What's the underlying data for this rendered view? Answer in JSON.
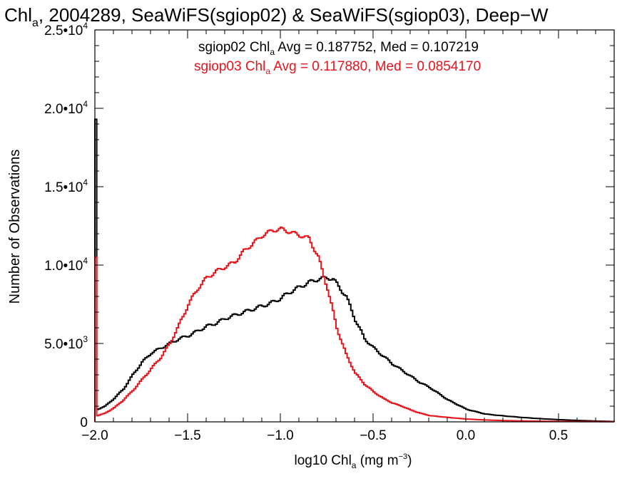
{
  "chart_data": {
    "type": "line",
    "title": {
      "main": "Chl",
      "sub": "a",
      "rest": ", 2004289, SeaWiFS(sgiop02) & SeaWiFS(sgiop03), Deep−W"
    },
    "xlabel": {
      "pre": "log10 Chl",
      "sub": "a",
      "mid": " (mg m",
      "sup": "−3",
      "post": ")"
    },
    "ylabel": "Number of Observations",
    "xlim": [
      -2.0,
      0.8
    ],
    "ylim": [
      0,
      25000
    ],
    "xticks": [
      {
        "value": -2.0,
        "label": "−2.0"
      },
      {
        "value": -1.5,
        "label": "−1.5"
      },
      {
        "value": -1.0,
        "label": "−1.0"
      },
      {
        "value": -0.5,
        "label": "−0.5"
      },
      {
        "value": 0.0,
        "label": "0.0"
      },
      {
        "value": 0.5,
        "label": "0.5"
      }
    ],
    "yticks": [
      {
        "value": 0,
        "mant": "0",
        "exp": ""
      },
      {
        "value": 5000,
        "mant": "5.0•10",
        "exp": "3"
      },
      {
        "value": 10000,
        "mant": "1.0•10",
        "exp": "4"
      },
      {
        "value": 15000,
        "mant": "1.5•10",
        "exp": "4"
      },
      {
        "value": 20000,
        "mant": "2.0•10",
        "exp": "4"
      },
      {
        "value": 25000,
        "mant": "2.5•10",
        "exp": "4"
      }
    ],
    "legend": [
      {
        "pre": "sgiop02 Chl",
        "sub": "a",
        "post": " Avg = 0.187752, Med = 0.107219",
        "color": "#000000"
      },
      {
        "pre": "sgiop03 Chl",
        "sub": "a",
        "post": " Avg = 0.117880, Med = 0.0854170",
        "color": "#e8141c"
      }
    ],
    "series": [
      {
        "color": "#000000",
        "x": [
          -2.0,
          -1.99,
          -1.95,
          -1.9,
          -1.85,
          -1.8,
          -1.75,
          -1.7,
          -1.65,
          -1.6,
          -1.55,
          -1.5,
          -1.45,
          -1.4,
          -1.35,
          -1.3,
          -1.25,
          -1.2,
          -1.15,
          -1.1,
          -1.05,
          -1.0,
          -0.95,
          -0.9,
          -0.85,
          -0.8,
          -0.75,
          -0.72,
          -0.7,
          -0.65,
          -0.6,
          -0.55,
          -0.5,
          -0.45,
          -0.4,
          -0.35,
          -0.3,
          -0.25,
          -0.2,
          -0.15,
          -0.1,
          -0.05,
          0.0,
          0.05,
          0.1,
          0.2,
          0.3,
          0.4,
          0.5,
          0.6,
          0.7,
          0.8
        ],
        "y": [
          19300,
          800,
          1000,
          1500,
          2100,
          3000,
          3800,
          4400,
          4700,
          5000,
          5300,
          5500,
          5800,
          6100,
          6300,
          6600,
          6800,
          7000,
          7200,
          7400,
          7600,
          7900,
          8300,
          8600,
          8900,
          9100,
          9200,
          9100,
          8800,
          8000,
          6500,
          5300,
          4700,
          4200,
          3700,
          3300,
          2900,
          2500,
          2200,
          1800,
          1400,
          1100,
          800,
          650,
          500,
          380,
          280,
          200,
          140,
          90,
          50,
          20
        ]
      },
      {
        "color": "#e8141c",
        "x": [
          -2.0,
          -1.99,
          -1.95,
          -1.9,
          -1.85,
          -1.8,
          -1.75,
          -1.7,
          -1.65,
          -1.6,
          -1.55,
          -1.5,
          -1.45,
          -1.4,
          -1.35,
          -1.3,
          -1.25,
          -1.2,
          -1.15,
          -1.1,
          -1.05,
          -1.0,
          -0.95,
          -0.9,
          -0.85,
          -0.8,
          -0.75,
          -0.7,
          -0.65,
          -0.6,
          -0.55,
          -0.5,
          -0.45,
          -0.4,
          -0.35,
          -0.3,
          -0.25,
          -0.2,
          -0.1,
          0.0,
          0.1,
          0.2,
          0.4,
          0.6,
          0.8
        ],
        "y": [
          10500,
          400,
          550,
          900,
          1400,
          2000,
          2700,
          3400,
          4100,
          5000,
          6200,
          7500,
          8500,
          9200,
          9600,
          9900,
          10200,
          10900,
          11400,
          11900,
          12200,
          12300,
          12100,
          11900,
          11700,
          10500,
          8500,
          6000,
          4300,
          3100,
          2400,
          1900,
          1500,
          1200,
          1000,
          750,
          550,
          400,
          280,
          180,
          120,
          80,
          40,
          20,
          10
        ]
      }
    ]
  }
}
